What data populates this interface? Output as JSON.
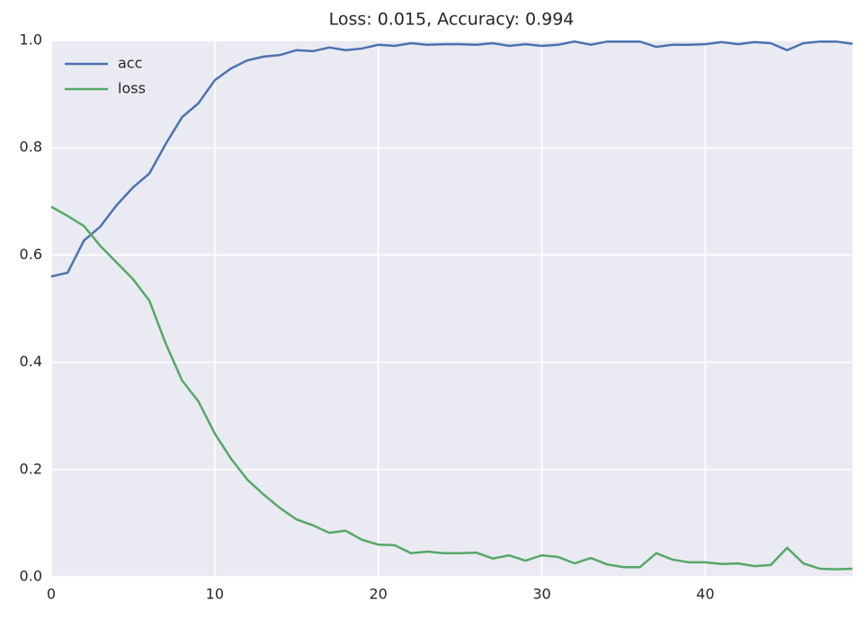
{
  "chart_data": {
    "type": "line",
    "title": "Loss: 0.015, Accuracy: 0.994",
    "x": [
      0,
      1,
      2,
      3,
      4,
      5,
      6,
      7,
      8,
      9,
      10,
      11,
      12,
      13,
      14,
      15,
      16,
      17,
      18,
      19,
      20,
      21,
      22,
      23,
      24,
      25,
      26,
      27,
      28,
      29,
      30,
      31,
      32,
      33,
      34,
      35,
      36,
      37,
      38,
      39,
      40,
      41,
      42,
      43,
      44,
      45,
      46,
      47,
      48,
      49
    ],
    "series": [
      {
        "name": "acc",
        "color": "#4c72b0",
        "values": [
          0.56,
          0.567,
          0.627,
          0.653,
          0.693,
          0.726,
          0.752,
          0.807,
          0.857,
          0.883,
          0.926,
          0.948,
          0.963,
          0.97,
          0.973,
          0.982,
          0.98,
          0.987,
          0.982,
          0.985,
          0.992,
          0.99,
          0.995,
          0.992,
          0.993,
          0.993,
          0.992,
          0.995,
          0.99,
          0.993,
          0.99,
          0.992,
          0.998,
          0.992,
          0.998,
          0.998,
          0.998,
          0.988,
          0.992,
          0.992,
          0.993,
          0.997,
          0.993,
          0.997,
          0.995,
          0.982,
          0.995,
          0.998,
          0.998,
          0.994
        ]
      },
      {
        "name": "loss",
        "color": "#55a868",
        "values": [
          0.69,
          0.673,
          0.654,
          0.617,
          0.586,
          0.555,
          0.515,
          0.435,
          0.366,
          0.327,
          0.267,
          0.22,
          0.181,
          0.153,
          0.128,
          0.107,
          0.096,
          0.082,
          0.086,
          0.069,
          0.06,
          0.059,
          0.044,
          0.047,
          0.044,
          0.044,
          0.045,
          0.034,
          0.04,
          0.03,
          0.04,
          0.037,
          0.025,
          0.035,
          0.023,
          0.018,
          0.018,
          0.044,
          0.032,
          0.027,
          0.027,
          0.024,
          0.025,
          0.02,
          0.022,
          0.054,
          0.025,
          0.015,
          0.014,
          0.015
        ]
      }
    ],
    "xlim": [
      0,
      49
    ],
    "xticks": [
      0,
      10,
      20,
      30,
      40
    ],
    "ylim": [
      0,
      1
    ],
    "yticks": [
      {
        "value": 0,
        "label": "0.0"
      },
      0.2,
      0.4,
      0.6,
      0.8,
      {
        "value": 1,
        "label": "1.0"
      }
    ],
    "grid": true,
    "legend": "upper left"
  }
}
